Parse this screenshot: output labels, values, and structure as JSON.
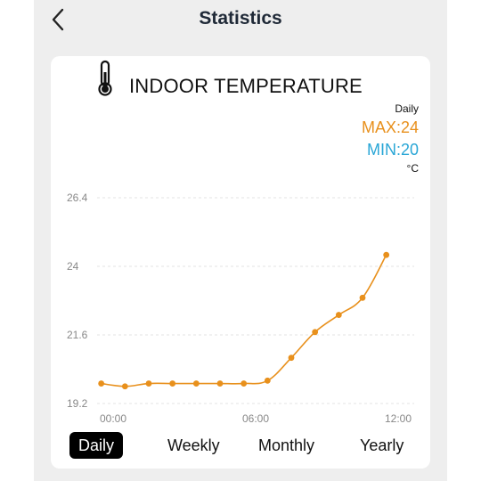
{
  "header": {
    "title": "Statistics",
    "back_icon": "chevron-left-icon"
  },
  "card": {
    "title": "INDOOR TEMPERATURE",
    "icon": "thermometer-icon",
    "period": "Daily",
    "max": "MAX:24",
    "min": "MIN:20",
    "unit": "°C"
  },
  "colors": {
    "max": "#e8901c",
    "min": "#29a6d6",
    "line": "#e8901c",
    "active_tab_bg": "#000000"
  },
  "tabs": [
    {
      "label": "Daily",
      "active": true
    },
    {
      "label": "Weekly",
      "active": false
    },
    {
      "label": "Monthly",
      "active": false
    },
    {
      "label": "Yearly",
      "active": false
    }
  ],
  "chart_data": {
    "type": "line",
    "y_tick_labels": [
      "26.4",
      "24",
      "21.6",
      "19.2"
    ],
    "x_tick_labels": [
      "00:00",
      "06:00",
      "12:00"
    ],
    "ylim": [
      19.2,
      26.4
    ],
    "xlim": [
      0,
      12
    ],
    "grid": true,
    "series": [
      {
        "x": [
          -0.5,
          0.5,
          1.5,
          2.5,
          3.5,
          4.5,
          5.5,
          6.5,
          7.5,
          8.5,
          9.5,
          10.5,
          11.5
        ],
        "values": [
          19.9,
          19.8,
          19.9,
          19.9,
          19.9,
          19.9,
          19.9,
          20.0,
          20.8,
          21.7,
          22.3,
          22.9,
          24.4
        ]
      }
    ]
  }
}
